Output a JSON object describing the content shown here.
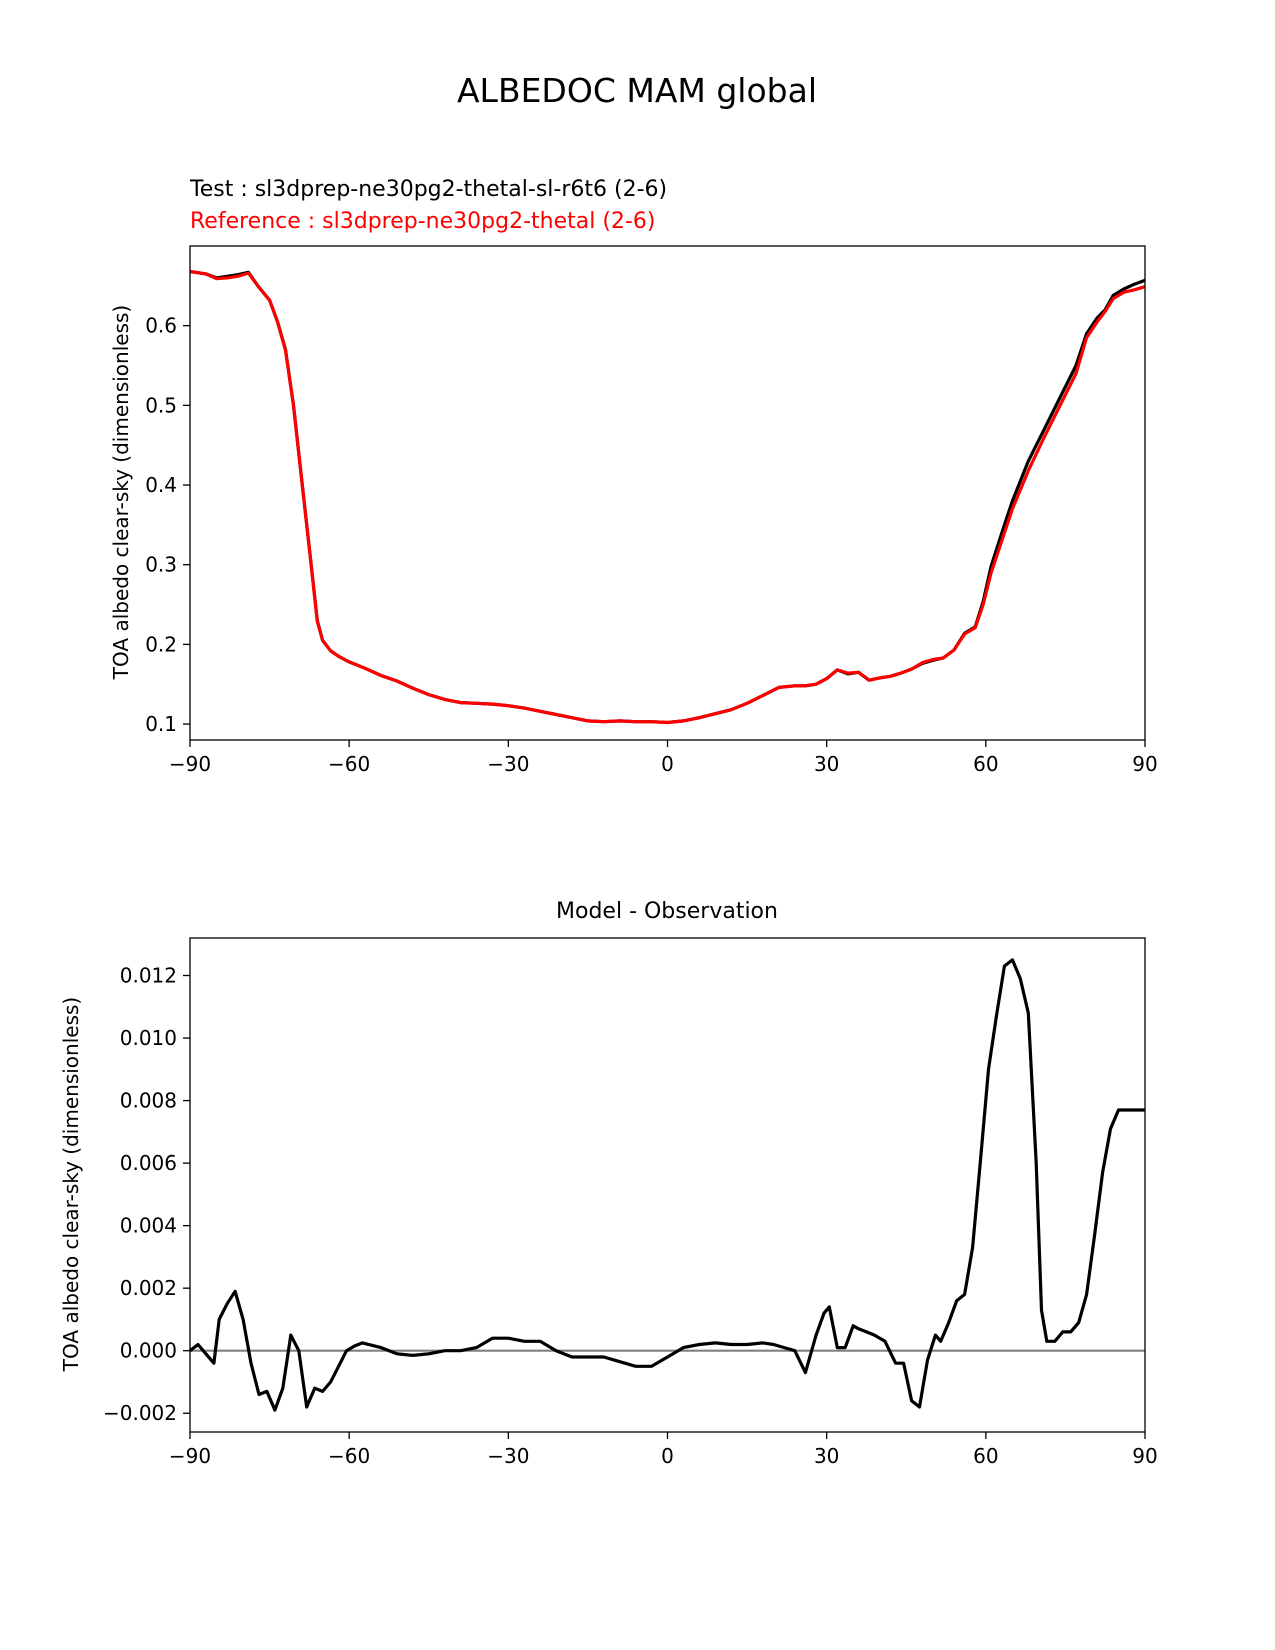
{
  "figure": {
    "suptitle": "ALBEDOC MAM global"
  },
  "chart_data": [
    {
      "type": "line",
      "title_lines": [
        {
          "text": "Test : sl3dprep-ne30pg2-thetal-sl-r6t6 (2-6)",
          "color": "#000000"
        },
        {
          "text": "Reference : sl3dprep-ne30pg2-thetal (2-6)",
          "color": "#ff0000"
        }
      ],
      "xlabel": "",
      "ylabel": "TOA albedo clear-sky (dimensionless)",
      "xlim": [
        -90,
        90
      ],
      "ylim": [
        0.08,
        0.7
      ],
      "xticks": [
        -90,
        -60,
        -30,
        0,
        30,
        60,
        90
      ],
      "xtick_labels": [
        "−90",
        "−60",
        "−30",
        "0",
        "30",
        "60",
        "90"
      ],
      "yticks": [
        0.1,
        0.2,
        0.3,
        0.4,
        0.5,
        0.6
      ],
      "ytick_labels": [
        "0.1",
        "0.2",
        "0.3",
        "0.4",
        "0.5",
        "0.6"
      ],
      "grid": false,
      "series": [
        {
          "color": "#000000",
          "x": [
            -90,
            -87,
            -85,
            -83,
            -81,
            -79,
            -77,
            -75,
            -73.5,
            -72,
            -70.5,
            -69,
            -67.5,
            -66,
            -65,
            -63.5,
            -62,
            -60,
            -57,
            -54,
            -51,
            -48,
            -45,
            -42,
            -39,
            -36,
            -33,
            -30,
            -27,
            -24,
            -21,
            -18,
            -15,
            -12,
            -9,
            -6,
            -3,
            0,
            3,
            6,
            9,
            12,
            15,
            18,
            21,
            24,
            26,
            28,
            30,
            32,
            34,
            36,
            38,
            40,
            42,
            44,
            46,
            48,
            50,
            52,
            54,
            56,
            58,
            59.5,
            61,
            63,
            65,
            68,
            71,
            74,
            77,
            79,
            81,
            82.5,
            84,
            86,
            88,
            90
          ],
          "y": [
            0.668,
            0.665,
            0.66,
            0.662,
            0.664,
            0.667,
            0.648,
            0.632,
            0.605,
            0.57,
            0.5,
            0.41,
            0.32,
            0.23,
            0.205,
            0.192,
            0.185,
            0.178,
            0.17,
            0.161,
            0.154,
            0.145,
            0.137,
            0.131,
            0.127,
            0.126,
            0.125,
            0.123,
            0.12,
            0.116,
            0.112,
            0.108,
            0.104,
            0.103,
            0.104,
            0.103,
            0.103,
            0.102,
            0.104,
            0.108,
            0.113,
            0.118,
            0.126,
            0.136,
            0.146,
            0.148,
            0.148,
            0.15,
            0.157,
            0.168,
            0.163,
            0.165,
            0.155,
            0.158,
            0.16,
            0.164,
            0.169,
            0.176,
            0.18,
            0.183,
            0.193,
            0.214,
            0.222,
            0.254,
            0.298,
            0.34,
            0.38,
            0.43,
            0.47,
            0.51,
            0.55,
            0.59,
            0.61,
            0.62,
            0.638,
            0.646,
            0.652,
            0.657
          ]
        },
        {
          "color": "#ff0000",
          "x": [
            -90,
            -87,
            -85,
            -83,
            -81,
            -79,
            -77,
            -75,
            -73.5,
            -72,
            -70.5,
            -69,
            -67.5,
            -66,
            -65,
            -63.5,
            -62,
            -60,
            -57,
            -54,
            -51,
            -48,
            -45,
            -42,
            -39,
            -36,
            -33,
            -30,
            -27,
            -24,
            -21,
            -18,
            -15,
            -12,
            -9,
            -6,
            -3,
            0,
            3,
            6,
            9,
            12,
            15,
            18,
            21,
            24,
            26,
            28,
            30,
            32,
            34,
            36,
            38,
            40,
            42,
            44,
            46,
            48,
            50,
            52,
            54,
            56,
            58,
            59.5,
            61,
            63,
            65,
            68,
            71,
            74,
            77,
            79,
            81,
            82.5,
            84,
            86,
            88,
            90
          ],
          "y": [
            0.668,
            0.665,
            0.659,
            0.66,
            0.662,
            0.666,
            0.648,
            0.632,
            0.605,
            0.569,
            0.5,
            0.41,
            0.32,
            0.229,
            0.205,
            0.192,
            0.185,
            0.178,
            0.17,
            0.161,
            0.154,
            0.145,
            0.137,
            0.131,
            0.127,
            0.126,
            0.125,
            0.123,
            0.12,
            0.116,
            0.112,
            0.108,
            0.104,
            0.103,
            0.104,
            0.103,
            0.103,
            0.102,
            0.104,
            0.108,
            0.113,
            0.118,
            0.126,
            0.136,
            0.146,
            0.148,
            0.148,
            0.15,
            0.157,
            0.168,
            0.164,
            0.165,
            0.155,
            0.158,
            0.16,
            0.164,
            0.169,
            0.177,
            0.181,
            0.183,
            0.193,
            0.213,
            0.221,
            0.25,
            0.29,
            0.33,
            0.37,
            0.418,
            0.46,
            0.5,
            0.54,
            0.585,
            0.605,
            0.618,
            0.634,
            0.642,
            0.645,
            0.649
          ]
        }
      ]
    },
    {
      "type": "line",
      "title": "Model - Observation",
      "xlabel": "",
      "ylabel": "TOA albedo clear-sky (dimensionless)",
      "xlim": [
        -90,
        90
      ],
      "ylim": [
        -0.0026,
        0.0132
      ],
      "xticks": [
        -90,
        -60,
        -30,
        0,
        30,
        60,
        90
      ],
      "xtick_labels": [
        "−90",
        "−60",
        "−30",
        "0",
        "30",
        "60",
        "90"
      ],
      "yticks": [
        -0.002,
        0.0,
        0.002,
        0.004,
        0.006,
        0.008,
        0.01,
        0.012
      ],
      "ytick_labels": [
        "−0.002",
        "0.000",
        "0.002",
        "0.004",
        "0.006",
        "0.008",
        "0.010",
        "0.012"
      ],
      "grid": false,
      "zero_line_color": "#808080",
      "series": [
        {
          "color": "#000000",
          "x": [
            -90,
            -88.5,
            -87,
            -85.5,
            -84.5,
            -83,
            -81.5,
            -80,
            -78.5,
            -77,
            -75.5,
            -74,
            -72.5,
            -71,
            -69.5,
            -68,
            -66.5,
            -65,
            -63.5,
            -62,
            -60.5,
            -59,
            -57.5,
            -54,
            -51,
            -48,
            -45,
            -42,
            -39,
            -36,
            -33,
            -30,
            -27,
            -24,
            -21,
            -18,
            -15,
            -12,
            -9,
            -6,
            -3,
            0,
            3,
            6,
            9,
            12,
            15,
            18,
            20,
            22,
            24,
            26,
            28,
            29.5,
            30.5,
            32,
            33.5,
            35,
            36,
            37.5,
            39,
            41,
            43,
            44.5,
            46,
            47.5,
            49,
            50.5,
            51.5,
            53,
            54.5,
            56,
            57.5,
            59,
            60.5,
            62,
            63.5,
            65,
            66.5,
            68,
            69.5,
            70.5,
            71.5,
            73,
            74.5,
            76,
            77.5,
            79,
            80.5,
            82,
            83.5,
            85,
            86.5,
            88,
            90
          ],
          "y": [
            0.0,
            0.0002,
            -0.0001,
            -0.0004,
            0.001,
            0.0015,
            0.0019,
            0.001,
            -0.0004,
            -0.0014,
            -0.0013,
            -0.0019,
            -0.0012,
            0.0005,
            0.0,
            -0.0018,
            -0.0012,
            -0.0013,
            -0.001,
            -0.0005,
            0.0,
            0.00015,
            0.00025,
            0.0001,
            -0.0001,
            -0.00015,
            -0.0001,
            0.0,
            0.0,
            0.0001,
            0.0004,
            0.0004,
            0.0003,
            0.0003,
            0.0,
            -0.0002,
            -0.0002,
            -0.0002,
            -0.00035,
            -0.0005,
            -0.0005,
            -0.0002,
            0.0001,
            0.0002,
            0.00025,
            0.0002,
            0.0002,
            0.00025,
            0.0002,
            0.0001,
            0.0,
            -0.0007,
            0.0005,
            0.0012,
            0.0014,
            0.0001,
            0.0001,
            0.0008,
            0.0007,
            0.0006,
            0.0005,
            0.0003,
            -0.0004,
            -0.0004,
            -0.0016,
            -0.0018,
            -0.0003,
            0.0005,
            0.0003,
            0.0009,
            0.0016,
            0.0018,
            0.0033,
            0.0061,
            0.009,
            0.0107,
            0.0123,
            0.0125,
            0.0119,
            0.0108,
            0.006,
            0.0013,
            0.0003,
            0.0003,
            0.0006,
            0.0006,
            0.0009,
            0.0018,
            0.0037,
            0.0057,
            0.0071,
            0.0077,
            0.0077,
            0.0077,
            0.0077
          ]
        }
      ]
    }
  ]
}
